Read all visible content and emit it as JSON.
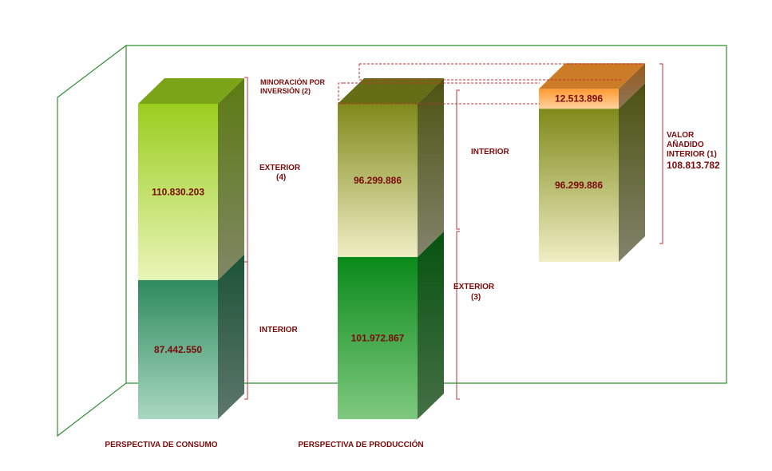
{
  "chart_data": {
    "type": "bar",
    "stacked": true,
    "style": "3d",
    "grid": false,
    "categories": [
      "PERSPECTIVA DE CONSUMO",
      "PERSPECTIVA DE PRODUCCIÓN",
      ""
    ],
    "bars": [
      {
        "segments": [
          {
            "value": 87442550,
            "label": "87.442.550",
            "color_top": "#2e8a5e",
            "color_bottom": "#a9d8c0"
          },
          {
            "value": 110830203,
            "label": "110.830.203",
            "color_top": "#9acd1e",
            "color_bottom": "#e9f5b8"
          }
        ]
      },
      {
        "segments": [
          {
            "value": 101972867,
            "label": "101.972.867",
            "color_top": "#0a8a1a",
            "color_bottom": "#7fc97f"
          },
          {
            "value": 96299886,
            "label": "96.299.886",
            "color_top": "#7f8a1a",
            "color_bottom": "#efeec4"
          }
        ]
      },
      {
        "base": 0,
        "segments": [
          {
            "value": 96299886,
            "label": "96.299.886",
            "color_top": "#7f8a1a",
            "color_bottom": "#efeec4"
          },
          {
            "value": 12513896,
            "label": "12.513.896",
            "color_top": "#ff9a30",
            "color_bottom": "#ffd3a0"
          }
        ]
      }
    ],
    "annotations": {
      "minoracion": "MINORACIÓN POR INVERSIÓN (2)",
      "exterior4_l1": "EXTERIOR",
      "exterior4_l2": "(4)",
      "interior_consumo": "INTERIOR",
      "interior_produccion": "INTERIOR",
      "exterior3_l1": "EXTERIOR",
      "exterior3_l2": "(3)",
      "va_l1": "VALOR",
      "va_l2": "AÑADIDO",
      "va_l3": "INTERIOR  (1)",
      "va_total": "108.813.782"
    },
    "colors": {
      "wall": "#2f8f2f",
      "bracket": "#c03030",
      "label": "#7a0a0a"
    }
  }
}
